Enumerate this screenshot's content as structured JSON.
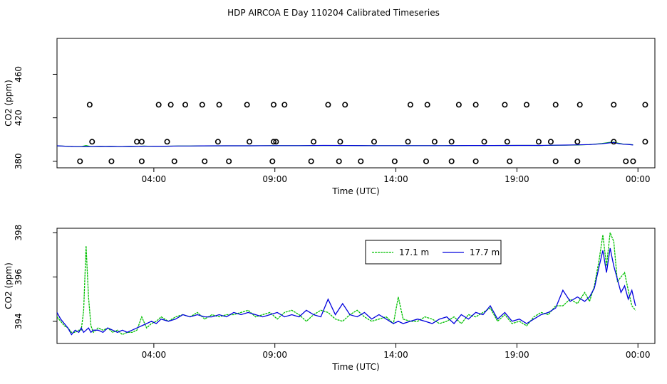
{
  "title": "HDP AIRCOA E  Day 110204  Calibrated Timeseries",
  "colors": {
    "series_17_1": "#00c000",
    "series_17_7": "#0000dd",
    "axis": "#000000"
  },
  "chart_data": [
    {
      "type": "scatter",
      "xlabel": "Time (UTC)",
      "ylabel": "CO2 (ppm)",
      "xlim": [
        0.0,
        24.7
      ],
      "ylim": [
        374,
        493
      ],
      "x_ticks": [
        4,
        9,
        14,
        19,
        24
      ],
      "x_tick_labels": [
        "04:00",
        "09:00",
        "14:00",
        "19:00",
        "00:00"
      ],
      "y_ticks": [
        380,
        420,
        460
      ],
      "y_tick_labels": [
        "380",
        "420",
        "460"
      ],
      "points": {
        "x": [
          0.95,
          2.25,
          3.5,
          4.85,
          6.1,
          7.1,
          8.9,
          10.5,
          11.65,
          12.55,
          13.95,
          15.25,
          16.3,
          17.3,
          18.7,
          20.6,
          21.5,
          23.5,
          23.8,
          1.45,
          3.3,
          3.5,
          4.55,
          6.65,
          7.95,
          8.95,
          9.05,
          10.6,
          11.7,
          13.1,
          14.5,
          15.6,
          16.3,
          17.65,
          18.6,
          19.9,
          20.4,
          21.5,
          23.0,
          24.3,
          1.35,
          4.2,
          4.7,
          5.3,
          6.0,
          6.7,
          7.85,
          8.95,
          9.4,
          11.2,
          11.9,
          14.6,
          15.3,
          16.6,
          17.3,
          18.5,
          19.4,
          20.6,
          21.6,
          23.0,
          24.3
        ],
        "y": [
          380,
          380,
          380,
          380,
          380,
          380,
          380,
          380,
          380,
          380,
          380,
          380,
          380,
          380,
          380,
          380,
          380,
          380,
          380,
          398,
          398,
          398,
          398,
          398,
          398,
          398,
          398,
          398,
          398,
          398,
          398,
          398,
          398,
          398,
          398,
          398,
          398,
          398,
          398,
          398,
          432,
          432,
          432,
          432,
          432,
          432,
          432,
          432,
          432,
          432,
          432,
          432,
          432,
          432,
          432,
          432,
          432,
          432,
          432,
          432,
          432
        ]
      },
      "series": [
        {
          "values_x": [
            0.0,
            0.2,
            0.4,
            0.6,
            0.8,
            1.0,
            1.2,
            1.4,
            1.6,
            1.8,
            2.0,
            2.2,
            2.4,
            2.6,
            2.8,
            3.0,
            3.2,
            3.4,
            3.6,
            3.8,
            4.0,
            4.5,
            5.0,
            5.5,
            6.0,
            7.0,
            8.0,
            9.0,
            10.0,
            11.0,
            12.0,
            13.0,
            14.0,
            15.0,
            16.0,
            17.0,
            18.0,
            19.0,
            19.5,
            20.0,
            20.5,
            21.0,
            21.5,
            22.0,
            22.5,
            22.8,
            23.0,
            23.2,
            23.4,
            23.6,
            23.8
          ],
          "values_y": [
            394.2,
            394.0,
            393.8,
            393.6,
            393.5,
            393.5,
            394.5,
            393.5,
            393.6,
            393.7,
            393.6,
            393.7,
            393.6,
            393.5,
            393.6,
            393.7,
            393.6,
            393.7,
            394.0,
            393.8,
            393.9,
            393.9,
            394.1,
            394.1,
            394.2,
            394.3,
            394.3,
            394.4,
            394.4,
            394.5,
            394.5,
            394.4,
            394.4,
            394.4,
            394.4,
            394.5,
            394.5,
            394.6,
            394.6,
            394.5,
            394.7,
            394.8,
            395.0,
            395.4,
            396.3,
            397.3,
            397.7,
            396.6,
            395.8,
            395.6,
            395.2
          ]
        },
        {
          "values_x": [
            0.0,
            0.2,
            0.4,
            0.6,
            0.8,
            1.0,
            1.2,
            1.4,
            1.6,
            1.8,
            2.0,
            2.2,
            2.4,
            2.6,
            2.8,
            3.0,
            3.2,
            3.4,
            3.6,
            3.8,
            4.0,
            4.5,
            5.0,
            5.5,
            6.0,
            7.0,
            8.0,
            9.0,
            10.0,
            11.0,
            12.0,
            13.0,
            14.0,
            15.0,
            16.0,
            17.0,
            18.0,
            19.0,
            19.5,
            20.0,
            20.5,
            21.0,
            21.5,
            22.0,
            22.5,
            22.8,
            23.0,
            23.2,
            23.4,
            23.6,
            23.8
          ],
          "values_y": [
            394.3,
            394.0,
            393.8,
            393.6,
            393.5,
            393.5,
            393.6,
            393.5,
            393.6,
            393.7,
            393.6,
            393.7,
            393.6,
            393.5,
            393.6,
            393.7,
            393.6,
            393.7,
            393.9,
            393.8,
            393.9,
            393.9,
            394.1,
            394.1,
            394.2,
            394.3,
            394.3,
            394.4,
            394.4,
            394.6,
            394.5,
            394.4,
            394.4,
            394.4,
            394.4,
            394.5,
            394.5,
            394.6,
            394.6,
            394.6,
            394.8,
            394.9,
            395.1,
            395.4,
            396.1,
            396.9,
            397.3,
            396.3,
            395.7,
            395.5,
            395.0
          ]
        }
      ]
    },
    {
      "type": "line",
      "xlabel": "Time (UTC)",
      "ylabel": "CO2 (ppm)",
      "xlim": [
        0.0,
        24.7
      ],
      "ylim": [
        393.0,
        398.2
      ],
      "x_ticks": [
        4,
        9,
        14,
        19,
        24
      ],
      "x_tick_labels": [
        "04:00",
        "09:00",
        "14:00",
        "19:00",
        "00:00"
      ],
      "y_ticks": [
        394,
        396,
        398
      ],
      "y_tick_labels": [
        "394",
        "396",
        "398"
      ],
      "legend": {
        "position": "top-right",
        "entries": [
          "17.1 m",
          "17.7 m"
        ]
      },
      "series": [
        {
          "name": "17.1 m",
          "color": "#00c000",
          "x": [
            0.0,
            0.15,
            0.3,
            0.45,
            0.6,
            0.75,
            0.9,
            1.0,
            1.1,
            1.2,
            1.3,
            1.4,
            1.5,
            1.7,
            1.9,
            2.1,
            2.3,
            2.5,
            2.7,
            2.9,
            3.1,
            3.3,
            3.5,
            3.7,
            3.9,
            4.1,
            4.3,
            4.6,
            4.9,
            5.2,
            5.5,
            5.8,
            6.1,
            6.4,
            6.7,
            7.0,
            7.3,
            7.6,
            7.9,
            8.2,
            8.5,
            8.8,
            9.1,
            9.4,
            9.7,
            10.0,
            10.3,
            10.6,
            10.9,
            11.2,
            11.5,
            11.8,
            12.1,
            12.4,
            12.7,
            13.0,
            13.3,
            13.6,
            13.9,
            14.1,
            14.3,
            14.6,
            14.9,
            15.2,
            15.5,
            15.8,
            16.1,
            16.4,
            16.7,
            17.0,
            17.3,
            17.6,
            17.9,
            18.2,
            18.5,
            18.8,
            19.1,
            19.4,
            19.7,
            20.0,
            20.3,
            20.6,
            20.9,
            21.2,
            21.5,
            21.8,
            22.0,
            22.2,
            22.4,
            22.55,
            22.7,
            22.85,
            23.0,
            23.15,
            23.3,
            23.45,
            23.6,
            23.75,
            23.9
          ],
          "y": [
            394.2,
            394.0,
            393.8,
            393.7,
            393.5,
            393.5,
            393.6,
            393.6,
            394.5,
            397.4,
            395.1,
            393.8,
            393.5,
            393.7,
            393.6,
            393.7,
            393.5,
            393.6,
            393.4,
            393.5,
            393.5,
            393.6,
            394.2,
            393.7,
            393.9,
            394.0,
            394.2,
            394.0,
            394.2,
            394.3,
            394.2,
            394.4,
            394.1,
            394.3,
            394.2,
            394.3,
            394.3,
            394.4,
            394.5,
            394.2,
            394.3,
            394.4,
            394.1,
            394.4,
            394.5,
            394.3,
            394.0,
            394.3,
            394.5,
            394.4,
            394.1,
            394.0,
            394.3,
            394.5,
            394.2,
            394.0,
            394.1,
            394.2,
            393.9,
            395.1,
            394.1,
            394.0,
            394.0,
            394.2,
            394.1,
            393.9,
            394.0,
            394.2,
            393.9,
            394.3,
            394.2,
            394.4,
            394.6,
            394.0,
            394.3,
            393.9,
            394.0,
            393.8,
            394.2,
            394.4,
            394.3,
            394.7,
            394.7,
            395.0,
            394.8,
            395.3,
            394.9,
            395.6,
            396.8,
            397.9,
            396.5,
            398.0,
            397.6,
            395.8,
            396.0,
            396.2,
            395.4,
            394.7,
            394.5
          ]
        },
        {
          "name": "17.7 m",
          "color": "#0000dd",
          "x": [
            0.0,
            0.15,
            0.3,
            0.45,
            0.6,
            0.75,
            0.9,
            1.0,
            1.1,
            1.2,
            1.3,
            1.4,
            1.5,
            1.7,
            1.9,
            2.1,
            2.3,
            2.5,
            2.7,
            2.9,
            3.1,
            3.3,
            3.5,
            3.7,
            3.9,
            4.1,
            4.3,
            4.6,
            4.9,
            5.2,
            5.5,
            5.8,
            6.1,
            6.4,
            6.7,
            7.0,
            7.3,
            7.6,
            7.9,
            8.2,
            8.5,
            8.8,
            9.1,
            9.4,
            9.7,
            10.0,
            10.3,
            10.6,
            10.9,
            11.2,
            11.5,
            11.8,
            12.1,
            12.4,
            12.7,
            13.0,
            13.3,
            13.6,
            13.9,
            14.1,
            14.3,
            14.6,
            14.9,
            15.2,
            15.5,
            15.8,
            16.1,
            16.4,
            16.7,
            17.0,
            17.3,
            17.6,
            17.9,
            18.2,
            18.5,
            18.8,
            19.1,
            19.4,
            19.7,
            20.0,
            20.3,
            20.6,
            20.9,
            21.2,
            21.5,
            21.8,
            22.0,
            22.2,
            22.4,
            22.55,
            22.7,
            22.85,
            23.0,
            23.15,
            23.3,
            23.45,
            23.6,
            23.75,
            23.9
          ],
          "y": [
            394.4,
            394.1,
            393.9,
            393.7,
            393.4,
            393.6,
            393.5,
            393.7,
            393.5,
            393.6,
            393.7,
            393.5,
            393.6,
            393.6,
            393.5,
            393.7,
            393.6,
            393.5,
            393.6,
            393.5,
            393.6,
            393.7,
            393.8,
            393.9,
            394.0,
            393.9,
            394.1,
            394.0,
            394.1,
            394.3,
            394.2,
            394.3,
            394.2,
            394.2,
            394.3,
            394.2,
            394.4,
            394.3,
            394.4,
            394.3,
            394.2,
            394.3,
            394.4,
            394.2,
            394.3,
            394.2,
            394.5,
            394.3,
            394.2,
            395.0,
            394.3,
            394.8,
            394.3,
            394.2,
            394.4,
            394.1,
            394.3,
            394.1,
            393.9,
            394.0,
            393.9,
            394.0,
            394.1,
            394.0,
            393.9,
            394.1,
            394.2,
            393.9,
            394.3,
            394.1,
            394.4,
            394.3,
            394.7,
            394.1,
            394.4,
            394.0,
            394.1,
            393.9,
            394.1,
            394.3,
            394.4,
            394.6,
            395.4,
            394.9,
            395.1,
            394.9,
            395.1,
            395.5,
            396.5,
            397.2,
            396.2,
            397.3,
            396.5,
            395.9,
            395.3,
            395.6,
            395.0,
            395.4,
            394.7
          ]
        }
      ]
    }
  ]
}
